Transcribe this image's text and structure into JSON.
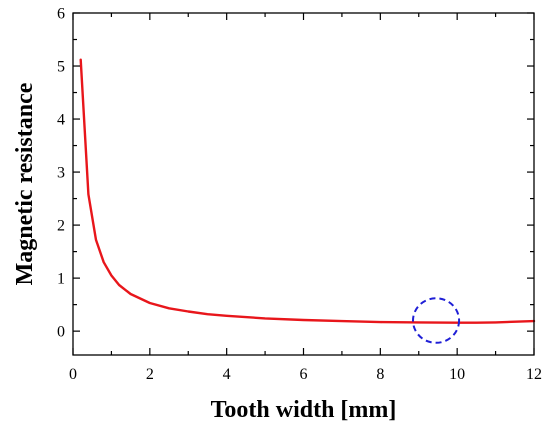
{
  "chart_data": {
    "type": "line",
    "xlabel": "Tooth width [mm]",
    "ylabel": "Magnetic resistance",
    "xlim": [
      0,
      12
    ],
    "ylim": [
      -0.45,
      6
    ],
    "x_ticks": [
      0,
      2,
      4,
      6,
      8,
      10,
      12
    ],
    "x_tick_labels": [
      "0",
      "2",
      "4",
      "6",
      "8",
      "10",
      "12"
    ],
    "y_ticks": [
      0,
      1,
      2,
      3,
      4,
      5,
      6
    ],
    "y_tick_labels": [
      "0",
      "1",
      "2",
      "3",
      "4",
      "5",
      "6"
    ],
    "grid": false,
    "series": [
      {
        "color": "#e8161b",
        "x": [
          0.2,
          0.4,
          0.6,
          0.8,
          1.0,
          1.2,
          1.5,
          2,
          2.5,
          3,
          3.5,
          4,
          5,
          6,
          7,
          8,
          9,
          10,
          10.5,
          11,
          12
        ],
        "y": [
          5.12,
          2.58,
          1.72,
          1.3,
          1.05,
          0.87,
          0.7,
          0.53,
          0.43,
          0.37,
          0.32,
          0.29,
          0.24,
          0.21,
          0.19,
          0.17,
          0.165,
          0.16,
          0.16,
          0.165,
          0.19
        ]
      }
    ],
    "annotations": [
      {
        "type": "dashed-circle",
        "color": "#1f1fd6",
        "center_x": 9.45,
        "center_y": 0.2,
        "radius_x": 0.6,
        "radius_y": 0.42
      }
    ]
  }
}
